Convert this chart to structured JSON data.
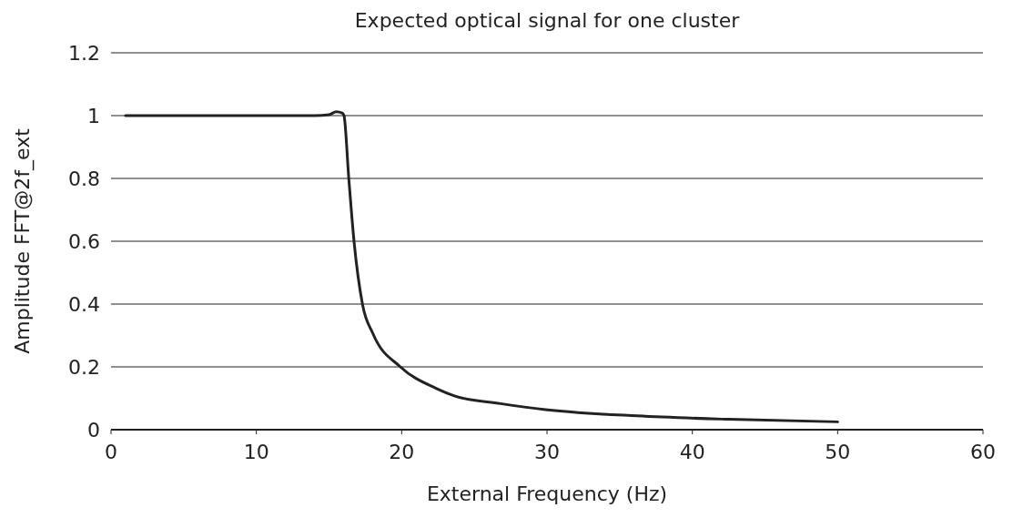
{
  "chart_data": {
    "type": "line",
    "title": "Expected optical signal for one cluster",
    "xlabel": "External Frequency (Hz)",
    "ylabel": "Amplitude FFT@2f_ext",
    "xlim": [
      0,
      60
    ],
    "xticks": [
      0,
      10,
      20,
      30,
      40,
      50,
      60
    ],
    "ylim": [
      0,
      1.2
    ],
    "yticks": [
      0,
      0.2,
      0.4,
      0.6,
      0.8,
      1,
      1.2
    ],
    "grid": "y",
    "marker": "none",
    "line_style": "solid",
    "series": [
      {
        "color": "#222222",
        "x": [
          1,
          5,
          10,
          14,
          15,
          15.5,
          15.9,
          16.03,
          16.36,
          16.72,
          17.3,
          18.03,
          19.91,
          22.4,
          23.67,
          26.8,
          29.9,
          36.2,
          42.5,
          50
        ],
        "values": [
          1,
          1,
          1,
          1,
          1.003,
          1.012,
          1.008,
          1,
          0.8,
          0.6,
          0.4,
          0.305,
          0.2,
          0.131,
          0.107,
          0.083,
          0.064,
          0.044,
          0.033,
          0.025
        ]
      }
    ]
  }
}
